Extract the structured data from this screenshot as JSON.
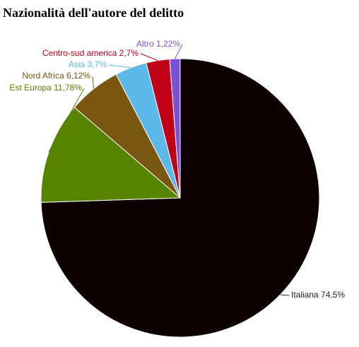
{
  "chart_data": {
    "type": "pie",
    "title": "Nazionalità dell'autore del delitto",
    "categories": [
      "Italiana",
      "Est Europa",
      "Nord Africa",
      "Asia",
      "Centro-sud america",
      "Altro"
    ],
    "values": [
      74.5,
      11.78,
      6.12,
      3.7,
      2.7,
      1.22
    ],
    "value_labels": [
      "74,5%",
      "11,78%",
      "6,12%",
      "3,7%",
      "2,7%",
      "1,22%"
    ],
    "colors": [
      "#0d0003",
      "#568400",
      "#7a5710",
      "#5bb8e8",
      "#c00016",
      "#7b52d6"
    ]
  }
}
